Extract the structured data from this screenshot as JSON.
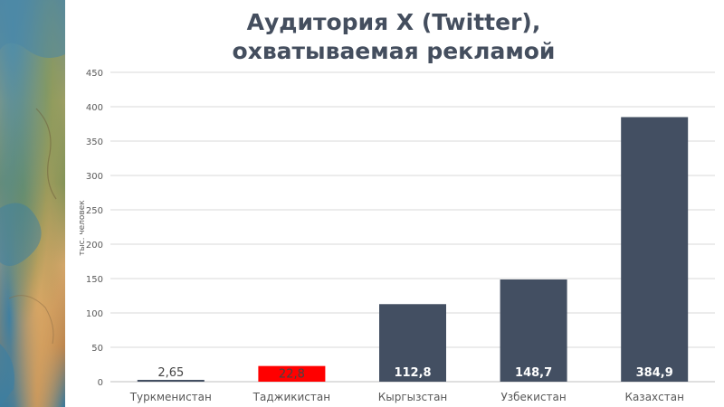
{
  "chart_data": {
    "type": "bar",
    "title_lines": [
      "Аудитория X (Twitter),",
      "охватываемая рекламой"
    ],
    "ylabel": "тыс. человек",
    "xlabel": "",
    "ylim": [
      0,
      450
    ],
    "yticks": [
      0,
      50,
      100,
      150,
      200,
      250,
      300,
      350,
      400,
      450
    ],
    "grid": true,
    "categories": [
      "Туркменистан",
      "Таджикистан",
      "Кыргызстан",
      "Узбекистан",
      "Казахстан"
    ],
    "values": [
      2.65,
      22.8,
      112.8,
      148.7,
      384.9
    ],
    "value_labels": [
      "2,65",
      "22,8",
      "112,8",
      "148,7",
      "384,9"
    ],
    "colors": [
      "#434f62",
      "#ff0000",
      "#434f62",
      "#434f62",
      "#434f62"
    ],
    "label_colors": [
      "#444444",
      "#444444",
      "#ffffff",
      "#ffffff",
      "#ffffff"
    ],
    "gridline_color": "#d9d9d9",
    "axis_text_color": "#595959"
  }
}
